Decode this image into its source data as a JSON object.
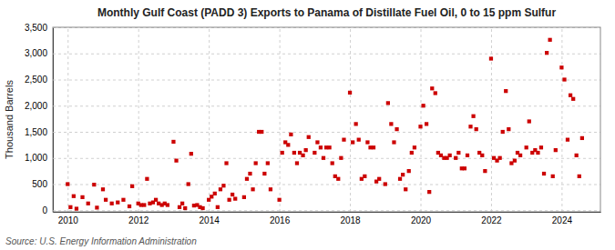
{
  "chart_data": {
    "type": "scatter",
    "title": "Monthly Gulf Coast (PADD 3) Exports to Panama of Distillate Fuel Oil, 0 to 15 ppm Sulfur",
    "ylabel": "Thousand Barrels",
    "annotations": [
      "Source: U.S. Energy Information Administration"
    ],
    "color": "#cc0000",
    "marker": "square",
    "grid": true,
    "xlim": [
      2009.58,
      2025.1
    ],
    "ylim": [
      -30,
      3500
    ],
    "xticks": [
      2010,
      2012,
      2014,
      2016,
      2018,
      2020,
      2022,
      2024
    ],
    "yticks": [
      0,
      500,
      {
        "value": 1000,
        "label": "1,000"
      },
      {
        "value": 1500,
        "label": "1,500"
      },
      {
        "value": 2000,
        "label": "2,000"
      },
      {
        "value": 2500,
        "label": "2,500"
      },
      {
        "value": 3000,
        "label": "3,000"
      },
      {
        "value": 3500,
        "label": "3,500"
      }
    ],
    "x": [
      2010.0,
      2010.08,
      2010.17,
      2010.25,
      2010.42,
      2010.58,
      2010.75,
      2010.83,
      2011.0,
      2011.08,
      2011.25,
      2011.42,
      2011.58,
      2011.75,
      2011.83,
      2012.0,
      2012.08,
      2012.17,
      2012.25,
      2012.33,
      2012.42,
      2012.5,
      2012.58,
      2012.67,
      2012.75,
      2012.83,
      2013.0,
      2013.08,
      2013.17,
      2013.25,
      2013.33,
      2013.42,
      2013.5,
      2013.58,
      2013.67,
      2013.75,
      2013.83,
      2014.0,
      2014.08,
      2014.17,
      2014.25,
      2014.33,
      2014.42,
      2014.5,
      2014.58,
      2014.67,
      2014.75,
      2015.0,
      2015.08,
      2015.17,
      2015.25,
      2015.33,
      2015.42,
      2015.5,
      2015.58,
      2015.67,
      2015.75,
      2016.0,
      2016.08,
      2016.17,
      2016.25,
      2016.33,
      2016.42,
      2016.5,
      2016.58,
      2016.67,
      2016.75,
      2016.83,
      2017.0,
      2017.08,
      2017.17,
      2017.25,
      2017.33,
      2017.42,
      2017.5,
      2017.58,
      2017.67,
      2017.75,
      2017.83,
      2018.0,
      2018.08,
      2018.17,
      2018.25,
      2018.33,
      2018.42,
      2018.5,
      2018.58,
      2018.67,
      2018.75,
      2018.83,
      2019.0,
      2019.08,
      2019.17,
      2019.25,
      2019.33,
      2019.42,
      2019.5,
      2019.58,
      2019.67,
      2019.75,
      2019.83,
      2020.0,
      2020.08,
      2020.17,
      2020.25,
      2020.33,
      2020.42,
      2020.5,
      2020.58,
      2020.67,
      2020.75,
      2020.83,
      2021.0,
      2021.08,
      2021.17,
      2021.25,
      2021.33,
      2021.42,
      2021.5,
      2021.58,
      2021.67,
      2021.75,
      2021.83,
      2022.0,
      2022.08,
      2022.17,
      2022.25,
      2022.33,
      2022.42,
      2022.5,
      2022.58,
      2022.67,
      2022.75,
      2022.83,
      2023.0,
      2023.08,
      2023.17,
      2023.25,
      2023.33,
      2023.42,
      2023.5,
      2023.58,
      2023.67,
      2023.75,
      2023.83,
      2024.0,
      2024.08,
      2024.17,
      2024.25,
      2024.33,
      2024.42,
      2024.5,
      2024.58
    ],
    "values": [
      500,
      60,
      270,
      30,
      250,
      130,
      490,
      50,
      400,
      200,
      130,
      150,
      200,
      75,
      460,
      130,
      100,
      100,
      600,
      130,
      150,
      200,
      130,
      100,
      130,
      100,
      1310,
      950,
      60,
      130,
      40,
      500,
      1080,
      90,
      100,
      60,
      40,
      200,
      260,
      320,
      60,
      400,
      470,
      900,
      200,
      300,
      220,
      250,
      600,
      700,
      400,
      900,
      1500,
      1500,
      700,
      900,
      400,
      200,
      1100,
      1300,
      1250,
      1450,
      1100,
      900,
      1100,
      1050,
      1150,
      1400,
      1100,
      1300,
      1200,
      1000,
      1200,
      1200,
      900,
      650,
      600,
      1000,
      1350,
      2250,
      1300,
      1650,
      1350,
      600,
      650,
      1300,
      1200,
      1200,
      550,
      600,
      500,
      2050,
      1650,
      1300,
      1550,
      600,
      680,
      400,
      750,
      1100,
      1200,
      1600,
      2000,
      1650,
      350,
      2330,
      2240,
      1100,
      1050,
      1000,
      1000,
      1050,
      1000,
      1100,
      800,
      800,
      1050,
      1600,
      1800,
      1550,
      1100,
      1050,
      750,
      2900,
      1000,
      950,
      1000,
      1500,
      2280,
      1550,
      900,
      950,
      1100,
      1050,
      1200,
      1700,
      1100,
      1150,
      1100,
      1200,
      700,
      3010,
      3260,
      650,
      1150,
      2730,
      2500,
      1350,
      2200,
      2130,
      1050,
      650,
      1380
    ]
  }
}
